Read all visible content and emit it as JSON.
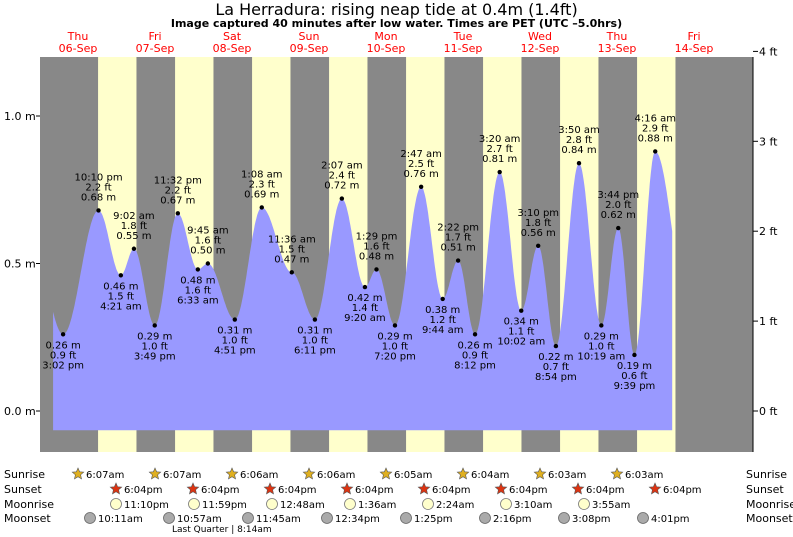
{
  "title": "La Herradura: rising  neap tide at 0.4m (1.4ft)",
  "subtitle": "Image captured 40 minutes after low water. Times are PET (UTC –5.0hrs)",
  "colors": {
    "night": "#888888",
    "day": "#ffffcc",
    "tide": "#9999ff",
    "date_text": "#ff0000",
    "sunrise_star": "#e0b020",
    "sunset_star": "#dd3311",
    "moonrise": "#ffffcc",
    "moonset": "#aaaaaa"
  },
  "chart_data": {
    "type": "area",
    "left_axis": {
      "unit": "m",
      "ticks": [
        {
          "v": 0.0,
          "label": "0.0 m"
        },
        {
          "v": 0.5,
          "label": "0.5 m"
        },
        {
          "v": 1.0,
          "label": "1.0 m"
        }
      ]
    },
    "right_axis": {
      "unit": "ft",
      "ticks": [
        {
          "v": 0,
          "label": "0 ft"
        },
        {
          "v": 1,
          "label": "1 ft"
        },
        {
          "v": 2,
          "label": "2 ft"
        },
        {
          "v": 3,
          "label": "3 ft"
        },
        {
          "v": 4,
          "label": "4 ft"
        }
      ]
    },
    "y_range_m": [
      -0.06,
      1.22
    ],
    "days": [
      {
        "day": "Thu",
        "date": "06-Sep"
      },
      {
        "day": "Fri",
        "date": "07-Sep"
      },
      {
        "day": "Sat",
        "date": "08-Sep"
      },
      {
        "day": "Sun",
        "date": "09-Sep"
      },
      {
        "day": "Mon",
        "date": "10-Sep"
      },
      {
        "day": "Tue",
        "date": "11-Sep"
      },
      {
        "day": "Wed",
        "date": "12-Sep"
      },
      {
        "day": "Thu",
        "date": "13-Sep"
      },
      {
        "day": "Fri",
        "date": "14-Sep"
      }
    ],
    "sun": [
      {
        "sunrise": "6:07am",
        "sunset": "6:04pm"
      },
      {
        "sunrise": "6:07am",
        "sunset": "6:04pm"
      },
      {
        "sunrise": "6:06am",
        "sunset": "6:04pm"
      },
      {
        "sunrise": "6:06am",
        "sunset": "6:04pm"
      },
      {
        "sunrise": "6:05am",
        "sunset": "6:04pm"
      },
      {
        "sunrise": "6:04am",
        "sunset": "6:04pm"
      },
      {
        "sunrise": "6:03am",
        "sunset": "6:04pm"
      },
      {
        "sunrise": "6:03am",
        "sunset": "6:04pm"
      }
    ],
    "moonrise": [
      "11:10pm",
      "11:59pm",
      "12:48am",
      "1:36am",
      "2:24am",
      "3:10am",
      "3:55am"
    ],
    "moonset": [
      "10:11am",
      "10:57am",
      "11:45am",
      "12:34pm",
      "1:25pm",
      "2:16pm",
      "3:08pm",
      "4:01pm"
    ],
    "moon_phase": "Last Quarter | 8:14am",
    "row_labels": [
      "Sunrise",
      "Sunset",
      "Moonrise",
      "Moonset"
    ],
    "tides": [
      {
        "t": 0.8,
        "m": 0.26,
        "ft": "0.9 ft",
        "mlabel": "0.26 m",
        "time": "3:02 pm",
        "low": true
      },
      {
        "t": 1.26,
        "m": 0.68,
        "ft": "2.2 ft",
        "mlabel": "0.68 m",
        "time": "10:10 pm",
        "low": false
      },
      {
        "t": 1.55,
        "m": 0.46,
        "ft": "1.5 ft",
        "mlabel": "0.46 m",
        "time": "4:21 am",
        "low": true
      },
      {
        "t": 1.72,
        "m": 0.55,
        "ft": "1.8 ft",
        "mlabel": "0.55 m",
        "time": "9:02 am",
        "low": false
      },
      {
        "t": 1.99,
        "m": 0.29,
        "ft": "1.0 ft",
        "mlabel": "0.29 m",
        "time": "3:49 pm",
        "low": true
      },
      {
        "t": 2.29,
        "m": 0.67,
        "ft": "2.2 ft",
        "mlabel": "0.67 m",
        "time": "11:32 pm",
        "low": false
      },
      {
        "t": 2.55,
        "m": 0.48,
        "ft": "1.6 ft",
        "mlabel": "0.48 m",
        "time": "6:33 am",
        "low": true
      },
      {
        "t": 2.68,
        "m": 0.5,
        "ft": "1.6 ft",
        "mlabel": "0.50 m",
        "time": "9:45 am",
        "low": false
      },
      {
        "t": 3.03,
        "m": 0.31,
        "ft": "1.0 ft",
        "mlabel": "0.31 m",
        "time": "4:51 pm",
        "low": true
      },
      {
        "t": 3.38,
        "m": 0.69,
        "ft": "2.3 ft",
        "mlabel": "0.69 m",
        "time": "1:08 am",
        "low": false
      },
      {
        "t": 3.77,
        "m": 0.47,
        "ft": "1.5 ft",
        "mlabel": "0.47 m",
        "time": "11:36 am",
        "low": false
      },
      {
        "t": 4.07,
        "m": 0.31,
        "ft": "1.0 ft",
        "mlabel": "0.31 m",
        "time": "6:11 pm",
        "low": true
      },
      {
        "t": 4.42,
        "m": 0.72,
        "ft": "2.4 ft",
        "mlabel": "0.72 m",
        "time": "2:07 am",
        "low": false
      },
      {
        "t": 4.72,
        "m": 0.42,
        "ft": "1.4 ft",
        "mlabel": "0.42 m",
        "time": "9:20 am",
        "low": true
      },
      {
        "t": 4.87,
        "m": 0.48,
        "ft": "1.6 ft",
        "mlabel": "0.48 m",
        "time": "1:29 pm",
        "low": false
      },
      {
        "t": 5.11,
        "m": 0.29,
        "ft": "1.0 ft",
        "mlabel": "0.29 m",
        "time": "7:20 pm",
        "low": true
      },
      {
        "t": 5.45,
        "m": 0.76,
        "ft": "2.5 ft",
        "mlabel": "0.76 m",
        "time": "2:47 am",
        "low": false
      },
      {
        "t": 5.73,
        "m": 0.38,
        "ft": "1.2 ft",
        "mlabel": "0.38 m",
        "time": "9:44 am",
        "low": true
      },
      {
        "t": 5.93,
        "m": 0.51,
        "ft": "1.7 ft",
        "mlabel": "0.51 m",
        "time": "2:22 pm",
        "low": false
      },
      {
        "t": 6.15,
        "m": 0.26,
        "ft": "0.9 ft",
        "mlabel": "0.26 m",
        "time": "8:12 pm",
        "low": true
      },
      {
        "t": 6.47,
        "m": 0.81,
        "ft": "2.7 ft",
        "mlabel": "0.81 m",
        "time": "3:20 am",
        "low": false
      },
      {
        "t": 6.75,
        "m": 0.34,
        "ft": "1.1 ft",
        "mlabel": "0.34 m",
        "time": "10:02 am",
        "low": true
      },
      {
        "t": 6.97,
        "m": 0.56,
        "ft": "1.8 ft",
        "mlabel": "0.56 m",
        "time": "3:10 pm",
        "low": false
      },
      {
        "t": 7.2,
        "m": 0.22,
        "ft": "0.7 ft",
        "mlabel": "0.22 m",
        "time": "8:54 pm",
        "low": true
      },
      {
        "t": 7.5,
        "m": 0.84,
        "ft": "2.8 ft",
        "mlabel": "0.84 m",
        "time": "3:50 am",
        "low": false
      },
      {
        "t": 7.79,
        "m": 0.29,
        "ft": "1.0 ft",
        "mlabel": "0.29 m",
        "time": "10:19 am",
        "low": true
      },
      {
        "t": 8.01,
        "m": 0.62,
        "ft": "2.0 ft",
        "mlabel": "0.62 m",
        "time": "3:44 pm",
        "low": false
      },
      {
        "t": 8.22,
        "m": 0.19,
        "ft": "0.6 ft",
        "mlabel": "0.19 m",
        "time": "9:39 pm",
        "low": true
      },
      {
        "t": 8.49,
        "m": 0.88,
        "ft": "2.9 ft",
        "mlabel": "0.88 m",
        "time": "4:16 am",
        "low": false
      }
    ]
  }
}
